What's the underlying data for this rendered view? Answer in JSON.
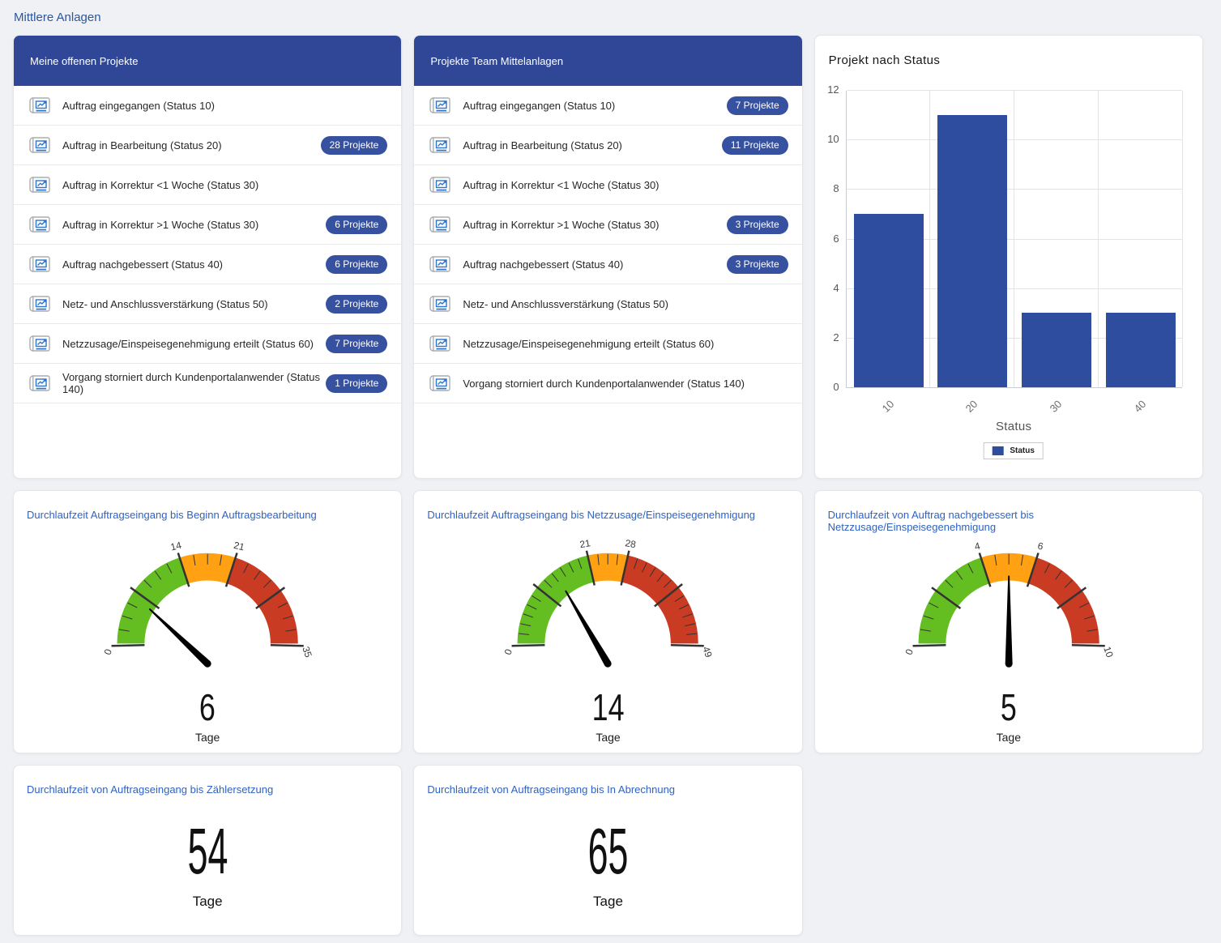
{
  "page": {
    "title": "Mittlere Anlagen"
  },
  "colors": {
    "header_blue": "#2f4796",
    "badge": "#36519f",
    "bar": "#2e4d9e",
    "green": "#64be22",
    "orange": "#ffa113",
    "red": "#c93b23",
    "needle": "#000000",
    "card_title_blue": "#2e62c4",
    "page_title_blue": "#2b579a"
  },
  "project_lists": [
    {
      "title": "Meine offenen Projekte",
      "items": [
        {
          "label": "Auftrag eingegangen (Status 10)",
          "badge": ""
        },
        {
          "label": "Auftrag in Bearbeitung (Status 20)",
          "badge": "28 Projekte"
        },
        {
          "label": "Auftrag in Korrektur <1 Woche (Status 30)",
          "badge": ""
        },
        {
          "label": "Auftrag in Korrektur >1 Woche (Status 30)",
          "badge": "6 Projekte"
        },
        {
          "label": "Auftrag nachgebessert (Status 40)",
          "badge": "6 Projekte"
        },
        {
          "label": "Netz- und Anschlussverstärkung (Status 50)",
          "badge": "2 Projekte"
        },
        {
          "label": "Netzzusage/Einspeisegenehmigung erteilt (Status 60)",
          "badge": "7 Projekte"
        },
        {
          "label": "Vorgang storniert durch Kundenportalanwender (Status 140)",
          "badge": "1 Projekte"
        }
      ]
    },
    {
      "title": "Projekte Team Mittelanlagen",
      "items": [
        {
          "label": "Auftrag eingegangen (Status 10)",
          "badge": "7 Projekte"
        },
        {
          "label": "Auftrag in Bearbeitung (Status 20)",
          "badge": "11 Projekte"
        },
        {
          "label": "Auftrag in Korrektur <1 Woche (Status 30)",
          "badge": ""
        },
        {
          "label": "Auftrag in Korrektur >1 Woche (Status 30)",
          "badge": "3 Projekte"
        },
        {
          "label": "Auftrag nachgebessert (Status 40)",
          "badge": "3 Projekte"
        },
        {
          "label": "Netz- und Anschlussverstärkung (Status 50)",
          "badge": ""
        },
        {
          "label": "Netzzusage/Einspeisegenehmigung erteilt (Status 60)",
          "badge": ""
        },
        {
          "label": "Vorgang storniert durch Kundenportalanwender (Status 140)",
          "badge": ""
        }
      ]
    }
  ],
  "chart_data": [
    {
      "type": "bar",
      "title": "Projekt nach Status",
      "categories": [
        "10",
        "20",
        "30",
        "40"
      ],
      "values": [
        7,
        11,
        3,
        3
      ],
      "xlabel": "Status",
      "ylabel": "",
      "ylim": [
        0,
        12
      ],
      "yticks": [
        0,
        2,
        4,
        6,
        8,
        10,
        12
      ],
      "legend": [
        "Status"
      ],
      "legend_position": "bottom",
      "grid": true,
      "bar_color": "#2e4d9e"
    },
    {
      "type": "gauge",
      "title": "Durchlaufzeit Auftragseingang bis Beginn Auftragsbearbeitung",
      "min": 0,
      "green_to": 14,
      "orange_to": 21,
      "max": 35,
      "tick_step": 1.75,
      "value": 6,
      "unit": "Tage"
    },
    {
      "type": "gauge",
      "title": "Durchlaufzeit Auftragseingang bis Netzzusage/Einspeisegenehmigung",
      "min": 0,
      "green_to": 21,
      "orange_to": 28,
      "max": 49,
      "tick_step": 1.75,
      "value": 14,
      "unit": "Tage"
    },
    {
      "type": "gauge",
      "title": "Durchlaufzeit von Auftrag nachgebessert bis Netzzusage/Einspeisegenehmigung",
      "min": 0,
      "green_to": 4,
      "orange_to": 6,
      "max": 10,
      "tick_step": 0.5,
      "value": 5,
      "unit": "Tage"
    },
    {
      "type": "kpi",
      "title": "Durchlaufzeit von Auftragseingang bis Zählersetzung",
      "value": 54,
      "unit": "Tage"
    },
    {
      "type": "kpi",
      "title": "Durchlaufzeit von Auftragseingang bis In Abrechnung",
      "value": 65,
      "unit": "Tage"
    }
  ]
}
